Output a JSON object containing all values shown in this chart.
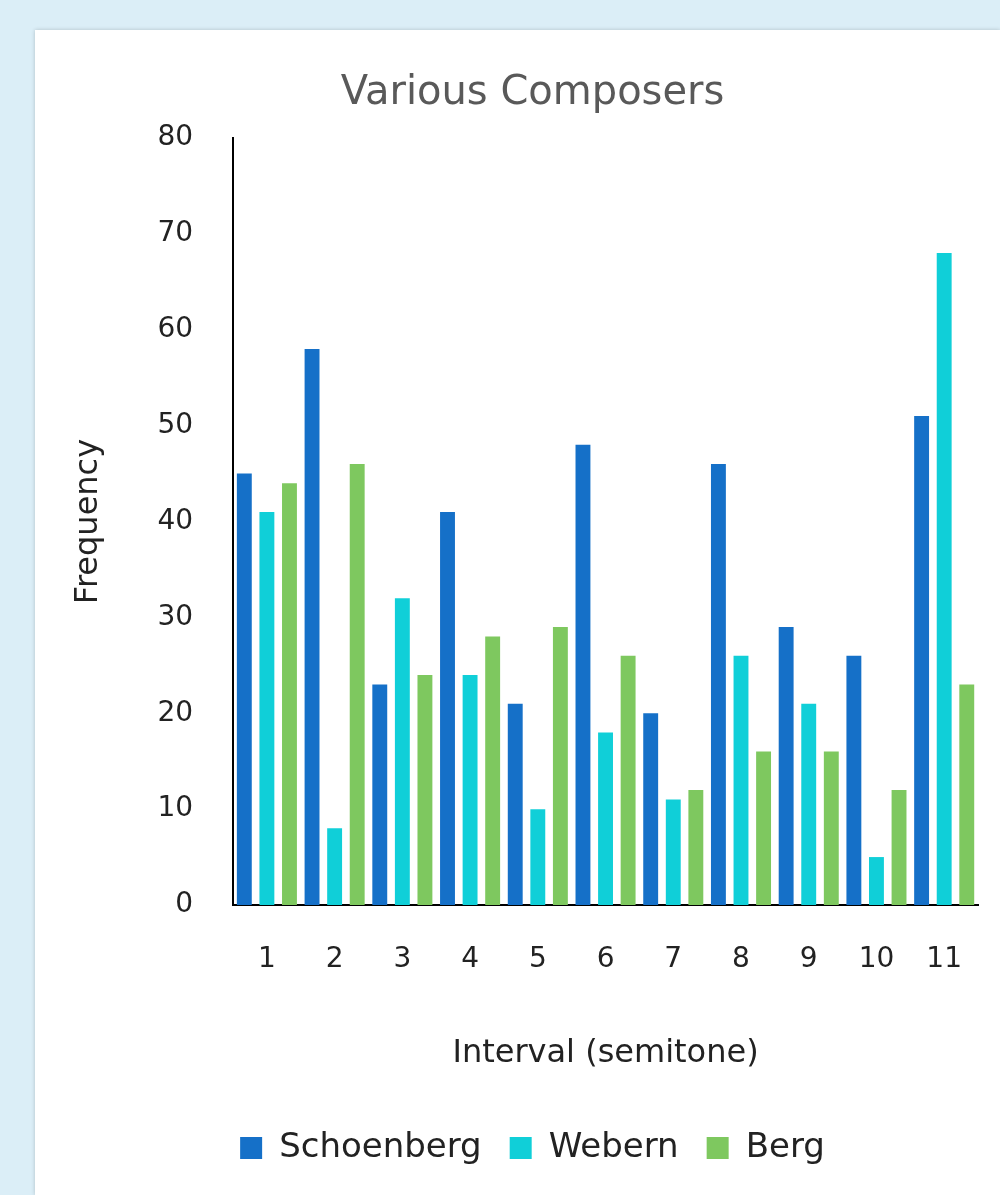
{
  "chart_data": {
    "type": "bar",
    "title": "Various Composers",
    "xlabel": "Interval (semitone)",
    "ylabel": "Frequency",
    "categories": [
      "1",
      "2",
      "3",
      "4",
      "5",
      "6",
      "7",
      "8",
      "9",
      "10",
      "11"
    ],
    "series": [
      {
        "name": "Schoenberg",
        "color": "#1570c8",
        "values": [
          45,
          58,
          23,
          41,
          21,
          48,
          20,
          46,
          29,
          26,
          51
        ]
      },
      {
        "name": "Webern",
        "color": "#10cfd8",
        "values": [
          41,
          8,
          32,
          24,
          10,
          18,
          11,
          26,
          21,
          5,
          68
        ]
      },
      {
        "name": "Berg",
        "color": "#7ec85f",
        "values": [
          44,
          46,
          24,
          28,
          29,
          26,
          12,
          16,
          16,
          12,
          23
        ]
      }
    ],
    "ylim": [
      0,
      80
    ],
    "yticks": [
      0,
      10,
      20,
      30,
      40,
      50,
      60,
      70,
      80
    ],
    "grid": false,
    "legend": "bottom"
  }
}
